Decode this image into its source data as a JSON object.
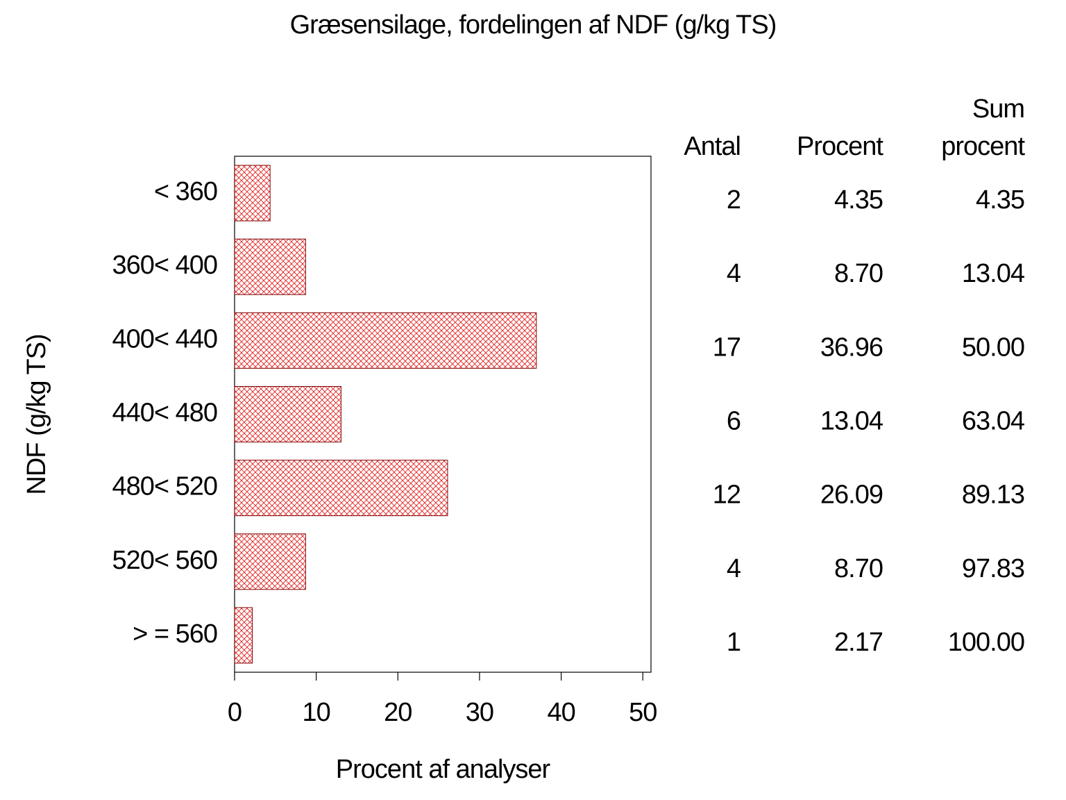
{
  "chart_data": {
    "type": "bar",
    "orientation": "horizontal",
    "title": "Græsensilage, fordelingen af NDF (g/kg TS)",
    "x_label": "Procent af analyser",
    "y_label": "NDF (g/kg TS)",
    "categories": [
      "< 360",
      "360< 400",
      "400< 440",
      "440< 480",
      "480< 520",
      "520< 560",
      "> = 560"
    ],
    "values": [
      4.35,
      8.7,
      36.96,
      13.04,
      26.09,
      8.7,
      2.17
    ],
    "value_labels": [
      "4.35",
      "8.70",
      "36.96",
      "13.04",
      "26.09",
      "8.70",
      "2.17"
    ],
    "color": "#e02020",
    "edge_color": "#800000",
    "xlim": [
      0,
      51
    ],
    "xticks": [
      0,
      10,
      20,
      30,
      40,
      50
    ],
    "table": {
      "columns": [
        "Antal",
        "Procent",
        "Sum procent"
      ],
      "counts": [
        2,
        4,
        17,
        6,
        12,
        4,
        1
      ],
      "cumulative": [
        "4.35",
        "13.04",
        "50.00",
        "63.04",
        "89.13",
        "97.83",
        "100.00"
      ]
    }
  }
}
